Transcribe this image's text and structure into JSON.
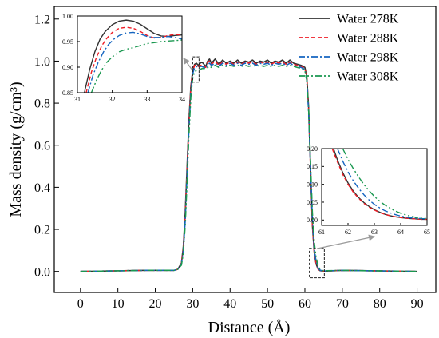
{
  "chart_data": [
    {
      "type": "line",
      "id": "main",
      "xlabel": "Distance (Å)",
      "ylabel": "Mass density (g/cm³)",
      "xlim": [
        -7,
        95
      ],
      "ylim": [
        -0.1,
        1.26
      ],
      "xticks": [
        0,
        10,
        20,
        30,
        40,
        50,
        60,
        70,
        80,
        90
      ],
      "yticks": [
        0.0,
        0.2,
        0.4,
        0.6,
        0.8,
        1.0,
        1.2
      ],
      "xtick_labels": [
        "0",
        "10",
        "20",
        "30",
        "40",
        "50",
        "60",
        "70",
        "80",
        "90"
      ],
      "ytick_labels": [
        "0.0",
        "0.2",
        "0.4",
        "0.6",
        "0.8",
        "1.0",
        "1.2"
      ],
      "legend_position": "top-right",
      "series": [
        {
          "name": "Water 278K",
          "color": "#333333",
          "dash": "solid",
          "x": [
            0,
            17.5,
            25,
            26,
            27,
            27.5,
            28,
            28.5,
            29,
            29.5,
            30,
            30.5,
            31,
            31.5,
            32,
            32.5,
            33,
            33.5,
            34,
            34.5,
            35,
            36,
            37,
            38,
            39,
            40,
            41,
            42,
            43,
            44,
            45,
            46,
            47,
            48,
            49,
            50,
            51,
            52,
            53,
            54,
            55,
            56,
            57,
            58,
            59,
            60,
            60.5,
            61,
            61.5,
            62,
            62.5,
            63,
            63.5,
            64,
            64.5,
            65,
            70,
            90
          ],
          "y": [
            0.0,
            0.005,
            0.005,
            0.01,
            0.04,
            0.12,
            0.28,
            0.5,
            0.72,
            0.88,
            0.955,
            0.985,
            0.99,
            0.98,
            0.99,
            0.995,
            0.985,
            0.975,
            1.0,
            1.01,
            0.99,
            1.01,
            0.985,
            1.005,
            0.99,
            1.0,
            0.99,
            1.005,
            0.99,
            1.0,
            0.995,
            1.005,
            0.99,
            1.0,
            0.995,
            1.005,
            0.99,
            1.0,
            0.995,
            1.005,
            0.99,
            1.005,
            0.99,
            0.985,
            0.98,
            0.97,
            0.93,
            0.78,
            0.5,
            0.22,
            0.09,
            0.035,
            0.012,
            0.004,
            0.002,
            0.001,
            0.005,
            0.0
          ]
        },
        {
          "name": "Water 288K",
          "color": "#ee1c25",
          "dash": "dash",
          "x": [
            0,
            17.5,
            25,
            26,
            27,
            27.5,
            28,
            28.5,
            29,
            29.5,
            30,
            30.5,
            31,
            31.5,
            32,
            32.5,
            33,
            33.5,
            34,
            34.5,
            35,
            36,
            37,
            38,
            39,
            40,
            41,
            42,
            43,
            44,
            45,
            46,
            47,
            48,
            49,
            50,
            51,
            52,
            53,
            54,
            55,
            56,
            57,
            58,
            59,
            60,
            60.5,
            61,
            61.5,
            62,
            62.5,
            63,
            63.5,
            64,
            64.5,
            65,
            70,
            90
          ],
          "y": [
            0.0,
            0.005,
            0.005,
            0.01,
            0.04,
            0.11,
            0.26,
            0.48,
            0.7,
            0.87,
            0.95,
            0.98,
            0.98,
            0.975,
            0.98,
            0.98,
            0.975,
            0.97,
            0.995,
            1.0,
            0.985,
            1.0,
            0.98,
            0.995,
            0.985,
            0.995,
            0.985,
            0.995,
            0.985,
            0.995,
            0.99,
            0.995,
            0.985,
            0.995,
            0.99,
            0.995,
            0.985,
            0.995,
            0.99,
            0.995,
            0.985,
            0.995,
            0.985,
            0.98,
            0.975,
            0.965,
            0.92,
            0.77,
            0.49,
            0.22,
            0.09,
            0.035,
            0.012,
            0.004,
            0.002,
            0.001,
            0.005,
            0.0
          ]
        },
        {
          "name": "Water 298K",
          "color": "#1565c0",
          "dash": "dashdot",
          "x": [
            0,
            17.5,
            25,
            26,
            27,
            27.5,
            28,
            28.5,
            29,
            29.5,
            30,
            30.5,
            31,
            31.5,
            32,
            32.5,
            33,
            33.5,
            34,
            34.5,
            35,
            36,
            37,
            38,
            39,
            40,
            41,
            42,
            43,
            44,
            45,
            46,
            47,
            48,
            49,
            50,
            51,
            52,
            53,
            54,
            55,
            56,
            57,
            58,
            59,
            60,
            60.5,
            61,
            61.5,
            62,
            62.5,
            63,
            63.5,
            64,
            64.5,
            65,
            70,
            90
          ],
          "y": [
            0.0,
            0.005,
            0.005,
            0.01,
            0.035,
            0.1,
            0.24,
            0.46,
            0.68,
            0.85,
            0.94,
            0.97,
            0.975,
            0.97,
            0.975,
            0.975,
            0.97,
            0.965,
            0.985,
            0.99,
            0.98,
            0.99,
            0.975,
            0.99,
            0.98,
            0.99,
            0.98,
            0.99,
            0.98,
            0.99,
            0.985,
            0.99,
            0.98,
            0.99,
            0.985,
            0.99,
            0.98,
            0.99,
            0.985,
            0.99,
            0.98,
            0.99,
            0.98,
            0.975,
            0.97,
            0.96,
            0.91,
            0.76,
            0.5,
            0.25,
            0.11,
            0.045,
            0.018,
            0.007,
            0.003,
            0.002,
            0.005,
            0.0
          ]
        },
        {
          "name": "Water 308K",
          "color": "#1a9850",
          "dash": "dashdotdot",
          "x": [
            0,
            17.5,
            25,
            26,
            27,
            27.5,
            28,
            28.5,
            29,
            29.5,
            30,
            30.5,
            31,
            31.5,
            32,
            32.5,
            33,
            33.5,
            34,
            34.5,
            35,
            36,
            37,
            38,
            39,
            40,
            41,
            42,
            43,
            44,
            45,
            46,
            47,
            48,
            49,
            50,
            51,
            52,
            53,
            54,
            55,
            56,
            57,
            58,
            59,
            60,
            60.5,
            61,
            61.5,
            62,
            62.5,
            63,
            63.5,
            64,
            64.5,
            65,
            70,
            90
          ],
          "y": [
            0.0,
            0.005,
            0.005,
            0.01,
            0.03,
            0.09,
            0.22,
            0.43,
            0.65,
            0.83,
            0.92,
            0.95,
            0.955,
            0.955,
            0.96,
            0.965,
            0.965,
            0.965,
            0.97,
            0.975,
            0.97,
            0.98,
            0.97,
            0.98,
            0.975,
            0.98,
            0.975,
            0.98,
            0.975,
            0.98,
            0.975,
            0.98,
            0.975,
            0.98,
            0.975,
            0.98,
            0.975,
            0.98,
            0.975,
            0.98,
            0.975,
            0.98,
            0.975,
            0.97,
            0.965,
            0.955,
            0.91,
            0.77,
            0.52,
            0.28,
            0.14,
            0.065,
            0.028,
            0.012,
            0.005,
            0.003,
            0.005,
            0.0
          ]
        }
      ]
    },
    {
      "type": "line",
      "id": "inset-top-left",
      "xlim": [
        31,
        34
      ],
      "ylim": [
        0.85,
        1.0
      ],
      "xticks": [
        31,
        32,
        33,
        34
      ],
      "yticks": [
        0.85,
        0.9,
        0.95,
        1.0
      ],
      "xtick_labels": [
        "31",
        "32",
        "33",
        "34"
      ],
      "ytick_labels": [
        "0.85",
        "0.90",
        "0.95",
        "1.00"
      ],
      "zoom_region": {
        "xlim": [
          30,
          31.7
        ],
        "ylim": [
          0.9,
          1.02
        ]
      },
      "series": [
        {
          "name": "Water 278K",
          "color": "#333333",
          "dash": "solid",
          "x": [
            31.2,
            31.35,
            31.5,
            31.65,
            31.8,
            32.0,
            32.2,
            32.4,
            32.6,
            32.8,
            33.0,
            33.2,
            33.4,
            33.6,
            33.8,
            34.0
          ],
          "y": [
            0.85,
            0.895,
            0.93,
            0.955,
            0.97,
            0.983,
            0.99,
            0.992,
            0.99,
            0.984,
            0.975,
            0.966,
            0.961,
            0.96,
            0.962,
            0.963
          ]
        },
        {
          "name": "Water 288K",
          "color": "#ee1c25",
          "dash": "dash",
          "x": [
            31.25,
            31.4,
            31.55,
            31.7,
            31.85,
            32.0,
            32.2,
            32.4,
            32.6,
            32.8,
            33.0,
            33.2,
            33.4,
            33.6,
            33.8,
            34.0
          ],
          "y": [
            0.85,
            0.89,
            0.92,
            0.942,
            0.957,
            0.968,
            0.976,
            0.978,
            0.976,
            0.97,
            0.962,
            0.957,
            0.958,
            0.962,
            0.964,
            0.963
          ]
        },
        {
          "name": "Water 298K",
          "color": "#1565c0",
          "dash": "dashdot",
          "x": [
            31.3,
            31.45,
            31.6,
            31.75,
            31.9,
            32.05,
            32.2,
            32.4,
            32.6,
            32.8,
            33.0,
            33.2,
            33.4,
            33.6,
            33.8,
            34.0
          ],
          "y": [
            0.85,
            0.885,
            0.91,
            0.93,
            0.945,
            0.955,
            0.962,
            0.967,
            0.968,
            0.965,
            0.96,
            0.958,
            0.958,
            0.96,
            0.958,
            0.955
          ]
        },
        {
          "name": "Water 308K",
          "color": "#1a9850",
          "dash": "dashdotdot",
          "x": [
            31.4,
            31.55,
            31.7,
            31.85,
            32.0,
            32.2,
            32.4,
            32.6,
            32.8,
            33.0,
            33.2,
            33.4,
            33.6,
            33.8,
            34.0
          ],
          "y": [
            0.85,
            0.875,
            0.895,
            0.91,
            0.92,
            0.93,
            0.935,
            0.938,
            0.942,
            0.946,
            0.948,
            0.95,
            0.951,
            0.952,
            0.953
          ]
        }
      ]
    },
    {
      "type": "line",
      "id": "inset-bottom-right",
      "xlim": [
        61,
        65
      ],
      "ylim": [
        -0.015,
        0.2
      ],
      "xticks": [
        61,
        62,
        63,
        64,
        65
      ],
      "yticks": [
        0.0,
        0.05,
        0.1,
        0.15,
        0.2
      ],
      "xtick_labels": [
        "61",
        "62",
        "63",
        "64",
        "65"
      ],
      "ytick_labels": [
        "0.00",
        "0.05",
        "0.10",
        "0.15",
        "0.20"
      ],
      "zoom_region": {
        "xlim": [
          61.2,
          65.2
        ],
        "ylim": [
          -0.03,
          0.11
        ]
      },
      "series": [
        {
          "name": "Water 278K",
          "color": "#333333",
          "dash": "solid",
          "x": [
            61.45,
            61.6,
            61.8,
            62.0,
            62.2,
            62.4,
            62.6,
            62.8,
            63.0,
            63.2,
            63.4,
            63.6,
            63.8,
            64.0,
            64.2,
            64.4,
            64.6,
            64.8,
            65.0
          ],
          "y": [
            0.2,
            0.168,
            0.133,
            0.104,
            0.081,
            0.063,
            0.049,
            0.038,
            0.029,
            0.022,
            0.016,
            0.012,
            0.009,
            0.007,
            0.005,
            0.004,
            0.003,
            0.002,
            0.002
          ]
        },
        {
          "name": "Water 288K",
          "color": "#ee1c25",
          "dash": "dash",
          "x": [
            61.4,
            61.6,
            61.8,
            62.0,
            62.2,
            62.4,
            62.6,
            62.8,
            63.0,
            63.2,
            63.4,
            63.6,
            63.8,
            64.0,
            64.2,
            64.4,
            64.6,
            64.8,
            65.0
          ],
          "y": [
            0.2,
            0.162,
            0.128,
            0.1,
            0.078,
            0.061,
            0.047,
            0.036,
            0.028,
            0.021,
            0.016,
            0.012,
            0.009,
            0.007,
            0.005,
            0.004,
            0.003,
            0.002,
            0.002
          ]
        },
        {
          "name": "Water 298K",
          "color": "#1565c0",
          "dash": "dashdot",
          "x": [
            61.6,
            61.8,
            62.0,
            62.2,
            62.4,
            62.6,
            62.8,
            63.0,
            63.2,
            63.4,
            63.6,
            63.8,
            64.0,
            64.2,
            64.4,
            64.6,
            64.8,
            65.0
          ],
          "y": [
            0.2,
            0.165,
            0.135,
            0.11,
            0.089,
            0.071,
            0.056,
            0.044,
            0.034,
            0.026,
            0.02,
            0.015,
            0.011,
            0.008,
            0.006,
            0.005,
            0.004,
            0.003
          ]
        },
        {
          "name": "Water 308K",
          "color": "#1a9850",
          "dash": "dashdotdot",
          "x": [
            61.8,
            62.0,
            62.2,
            62.4,
            62.6,
            62.8,
            63.0,
            63.2,
            63.4,
            63.6,
            63.8,
            64.0,
            64.2,
            64.4,
            64.6,
            64.8,
            65.0
          ],
          "y": [
            0.2,
            0.17,
            0.144,
            0.121,
            0.1,
            0.082,
            0.066,
            0.053,
            0.042,
            0.033,
            0.025,
            0.019,
            0.014,
            0.01,
            0.007,
            0.005,
            0.004
          ]
        }
      ]
    }
  ]
}
